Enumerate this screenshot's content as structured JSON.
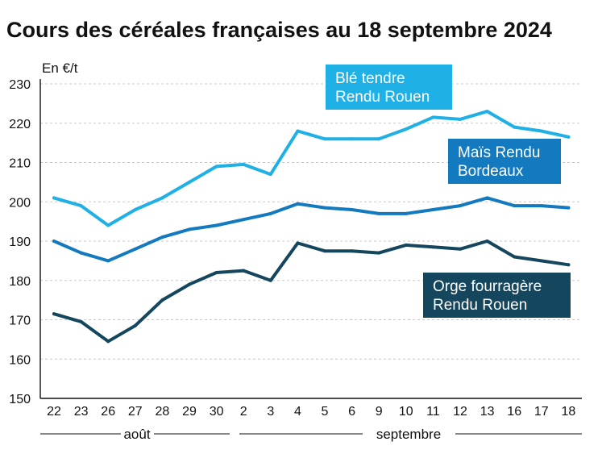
{
  "chart_data": {
    "type": "line",
    "title": "Cours des céréales françaises au 18 septembre 2024",
    "ylabel": "En €/t",
    "ylim": [
      150,
      230
    ],
    "yticks": [
      150,
      160,
      170,
      180,
      190,
      200,
      210,
      220,
      230
    ],
    "grid": true,
    "categories": [
      "22",
      "23",
      "26",
      "27",
      "28",
      "29",
      "30",
      "2",
      "3",
      "4",
      "5",
      "6",
      "9",
      "10",
      "11",
      "12",
      "13",
      "16",
      "17",
      "18"
    ],
    "groups": [
      {
        "label": "août",
        "from": 0,
        "to": 6
      },
      {
        "label": "septembre",
        "from": 7,
        "to": 19
      }
    ],
    "series": [
      {
        "name": "Blé tendre Rendu Rouen",
        "label_lines": [
          "Blé tendre",
          "Rendu Rouen"
        ],
        "color": "#1fb0e6",
        "values": [
          201,
          199,
          194,
          198,
          201,
          205,
          209,
          209.5,
          207,
          218,
          216,
          216,
          216,
          218.5,
          221.5,
          221,
          223,
          219,
          218,
          216.5
        ]
      },
      {
        "name": "Maïs Rendu Bordeaux",
        "label_lines": [
          "Maïs Rendu",
          "Bordeaux"
        ],
        "color": "#137ac0",
        "values": [
          190,
          187,
          185,
          188,
          191,
          193,
          194,
          195.5,
          197,
          199.5,
          198.5,
          198,
          197,
          197,
          198,
          199,
          201,
          199,
          199,
          198.5
        ]
      },
      {
        "name": "Orge fourragère Rendu Rouen",
        "label_lines": [
          "Orge fourragère",
          "Rendu Rouen"
        ],
        "color": "#14465e",
        "values": [
          171.5,
          169.5,
          164.5,
          168.5,
          175,
          179,
          182,
          182.5,
          180,
          189.5,
          187.5,
          187.5,
          187,
          189,
          188.5,
          188,
          190,
          186,
          185,
          184
        ]
      }
    ]
  }
}
